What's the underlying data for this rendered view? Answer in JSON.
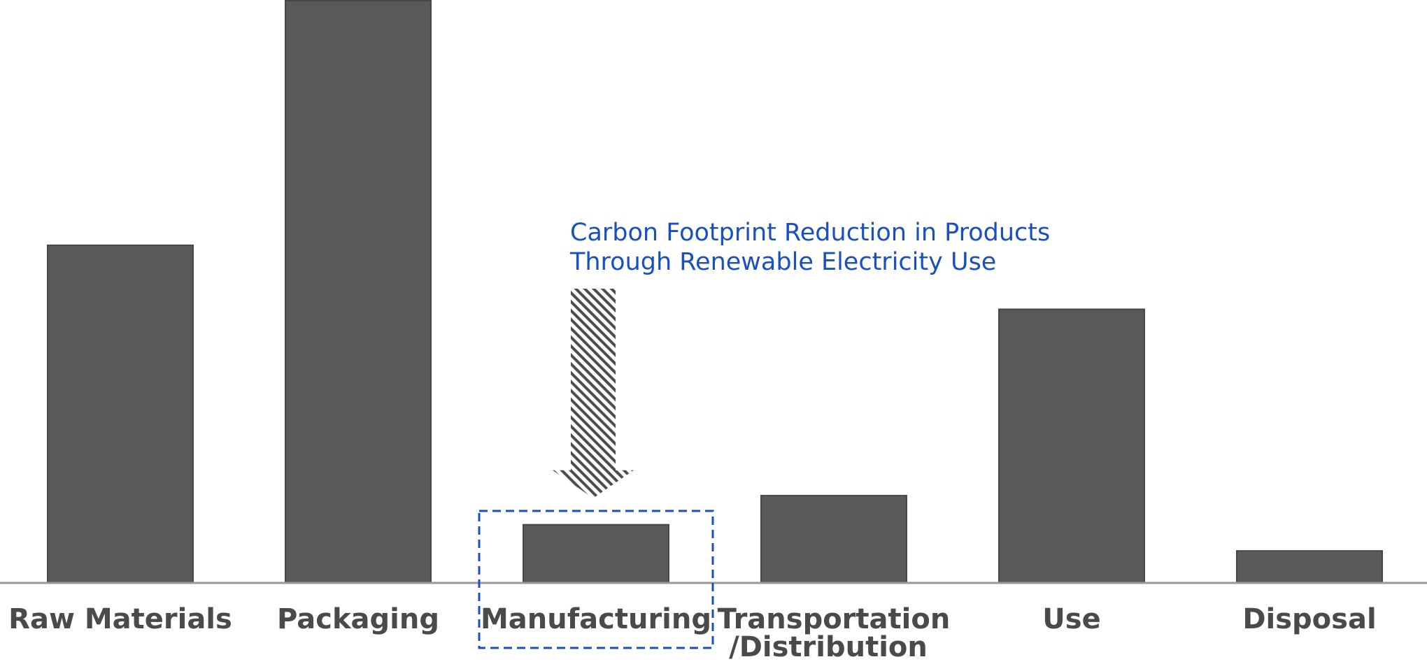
{
  "chart_data": {
    "type": "bar",
    "categories": [
      "Raw Materials",
      "Packaging",
      "Manufacturing",
      "Transportation\n/Distribution",
      "Use",
      "Disposal"
    ],
    "values": [
      58,
      100,
      10,
      15,
      47,
      5.5
    ],
    "title": "",
    "xlabel": "",
    "ylabel": "",
    "ylim": [
      0,
      100
    ],
    "grid": false,
    "bar_color": "#595959",
    "highlight": {
      "category": "Manufacturing",
      "style": "dashed-box",
      "color": "#1a4fbf"
    },
    "annotation": {
      "lines": [
        "Carbon Footprint Reduction in Products",
        "Through Renewable Electricity Use"
      ],
      "color": "#1a4fbf",
      "arrow": "hatched-down-arrow",
      "target": "Manufacturing"
    }
  }
}
